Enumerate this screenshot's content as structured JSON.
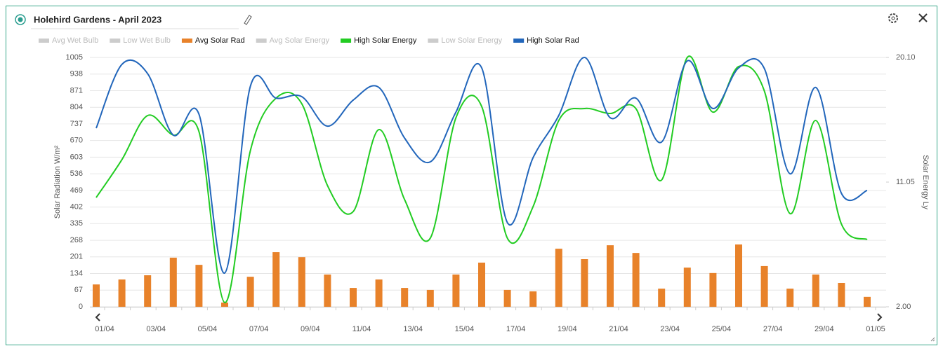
{
  "header": {
    "title": "Holehird Gardens - April 2023"
  },
  "chart_data": {
    "type": "bar-line",
    "ylabel": "Solar Radiation W/m²",
    "y2label": "Solar Energy Ly",
    "categories": [
      "01/04",
      null,
      "03/04",
      null,
      "05/04",
      null,
      "07/04",
      null,
      "09/04",
      null,
      "11/04",
      null,
      "13/04",
      null,
      "15/04",
      null,
      "17/04",
      null,
      "19/04",
      null,
      "21/04",
      null,
      "23/04",
      null,
      "25/04",
      null,
      "27/04",
      null,
      "29/04",
      null,
      "01/05"
    ],
    "ylim": [
      0,
      1005
    ],
    "yticks": [
      0,
      67,
      134,
      201,
      268,
      335,
      402,
      469,
      536,
      603,
      670,
      737,
      804,
      871,
      938,
      1005
    ],
    "y2lim": [
      2,
      20.1
    ],
    "y2ticks": [
      {
        "value": 2,
        "label": "2.00"
      },
      11.05,
      {
        "value": 20.1,
        "label": "20.10"
      }
    ],
    "grid": true,
    "series": [
      {
        "name": "Avg Wet Bulb",
        "color": "#cccccc",
        "visible": false
      },
      {
        "name": "Low Wet Bulb",
        "color": "#cccccc",
        "visible": false
      },
      {
        "name": "Avg Solar Rad",
        "color": "#e8822a",
        "visible": true,
        "type": "bar",
        "values": [
          90,
          110,
          127,
          198,
          169,
          17,
          121,
          220,
          200,
          130,
          76,
          110,
          76,
          68,
          130,
          178,
          68,
          62,
          234,
          192,
          248,
          217,
          73,
          158,
          136,
          251,
          164,
          73,
          130,
          96,
          40
        ]
      },
      {
        "name": "Avg Solar Energy",
        "color": "#cccccc",
        "visible": false
      },
      {
        "name": "High Solar Energy",
        "color": "#22cc22",
        "visible": true,
        "type": "line",
        "axis": "y2",
        "values": [
          9.93,
          12.68,
          15.88,
          14.46,
          14.71,
          2.31,
          13.34,
          17.15,
          16.74,
          10.8,
          8.91,
          14.86,
          9.78,
          6.98,
          15.73,
          16.54,
          6.98,
          9.27,
          15.52,
          16.39,
          16.03,
          16.39,
          11.2,
          20.1,
          16.13,
          19.44,
          17.66,
          8.76,
          15.52,
          8.0,
          6.88
        ]
      },
      {
        "name": "Low Solar Energy",
        "color": "#cccccc",
        "visible": false
      },
      {
        "name": "High Solar Rad",
        "color": "#2266bb",
        "visible": true,
        "type": "line",
        "values": [
          720,
          977,
          940,
          692,
          776,
          136,
          889,
          841,
          847,
          728,
          833,
          884,
          680,
          584,
          785,
          963,
          339,
          601,
          771,
          1005,
          762,
          841,
          664,
          991,
          799,
          963,
          960,
          536,
          884,
          457,
          469
        ]
      }
    ]
  }
}
